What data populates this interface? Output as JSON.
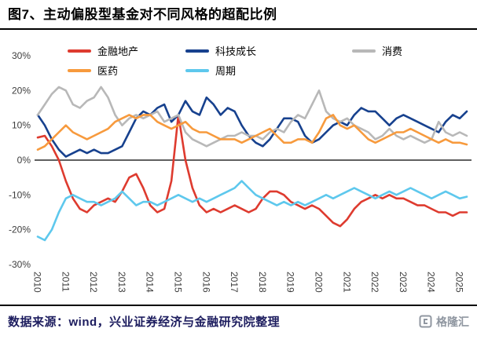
{
  "page": {
    "title": "图7、主动偏股型基金对不同风格的超配比例",
    "source_text": "数据来源：wind，兴业证券经济与金融研究院整理",
    "logo_text": "格隆汇"
  },
  "chart_data": {
    "type": "line",
    "title": "主动偏股型基金对不同风格的超配比例",
    "x_unit": "quarterly, 2010Q1 - 2025Q2",
    "x_tick_labels": [
      "2010",
      "2011",
      "2012",
      "2013",
      "2014",
      "2015",
      "2016",
      "2017",
      "2018",
      "2019",
      "2020",
      "2021",
      "2022",
      "2023",
      "2024",
      "2025"
    ],
    "points_per_year": 4,
    "ylim": [
      -30,
      30
    ],
    "y_ticks": [
      30,
      20,
      10,
      0,
      -10,
      -20,
      -30
    ],
    "y_tick_labels": [
      "30%",
      "20%",
      "10%",
      "0%",
      "-10%",
      "-20%",
      "-30%"
    ],
    "grid": false,
    "legend_position": "top",
    "axis_color": "#000000",
    "series": [
      {
        "name": "金融地产",
        "color": "#de3b2f",
        "values": [
          6.5,
          7,
          4,
          0,
          -6,
          -11,
          -14,
          -15,
          -13,
          -12,
          -11,
          -12,
          -9,
          -5,
          -4,
          -8,
          -13,
          -15,
          -14,
          -6,
          13,
          0,
          -8,
          -13,
          -15,
          -14,
          -15,
          -14,
          -13,
          -14,
          -15,
          -14,
          -11,
          -9,
          -9,
          -10,
          -12,
          -13,
          -14,
          -13,
          -14,
          -16,
          -18,
          -19,
          -17,
          -14,
          -12,
          -11,
          -10,
          -11,
          -10,
          -11,
          -11,
          -12,
          -13,
          -13,
          -14,
          -15,
          -15,
          -16,
          -15,
          -15
        ]
      },
      {
        "name": "科技成长",
        "color": "#17418e",
        "values": [
          13,
          10,
          6,
          3,
          1,
          2,
          3,
          2,
          3,
          2,
          2,
          3,
          4,
          8,
          12,
          14,
          13,
          15,
          16,
          11,
          13,
          17,
          14,
          13,
          18,
          16,
          13,
          15,
          14,
          10,
          7,
          5,
          4,
          6,
          9,
          12,
          12,
          11,
          7,
          5,
          6,
          8,
          10,
          11,
          10,
          13,
          15,
          14,
          14,
          12,
          10,
          12,
          13,
          12,
          11,
          10,
          9,
          8,
          11,
          13,
          12,
          14
        ]
      },
      {
        "name": "消费",
        "color": "#b8b8b8",
        "values": [
          13,
          16,
          19,
          21,
          20,
          16,
          15,
          17,
          18,
          21,
          18,
          13,
          10,
          12,
          13,
          12,
          13,
          14,
          11,
          12,
          13,
          8,
          6,
          5,
          4,
          5,
          6,
          7,
          7,
          8,
          7,
          7,
          6,
          8,
          9,
          8,
          11,
          13,
          12,
          16,
          20,
          14,
          12,
          11,
          12,
          10,
          9,
          8,
          6,
          7,
          9,
          7,
          6,
          7,
          6,
          5,
          6,
          11,
          8,
          7,
          8,
          7
        ]
      },
      {
        "name": "医药",
        "color": "#f79a3d",
        "values": [
          3,
          4,
          6,
          8,
          10,
          8,
          7,
          6,
          7,
          8,
          9,
          11,
          12,
          13,
          12,
          13,
          13,
          11,
          10,
          9,
          10,
          11,
          9,
          8,
          8,
          7,
          6,
          6,
          6,
          5,
          6,
          7,
          8,
          9,
          7,
          5,
          5,
          6,
          6,
          5,
          8,
          12,
          13,
          10,
          9,
          10,
          8,
          6,
          5,
          6,
          7,
          8,
          8,
          9,
          8,
          7,
          6,
          5,
          6,
          5,
          5,
          4.5
        ]
      },
      {
        "name": "周期",
        "color": "#5ec8ed",
        "values": [
          -22,
          -23,
          -20,
          -15,
          -11,
          -10,
          -11,
          -12,
          -12,
          -13,
          -12,
          -11,
          -9,
          -11,
          -13,
          -12,
          -12,
          -13,
          -12,
          -11,
          -10,
          -11,
          -12,
          -11,
          -12,
          -11,
          -10,
          -9,
          -8,
          -6,
          -8,
          -10,
          -11,
          -12,
          -13,
          -12,
          -13,
          -12,
          -13,
          -12,
          -11,
          -10,
          -11,
          -10,
          -9,
          -8,
          -9,
          -10,
          -11,
          -10,
          -9,
          -10,
          -9,
          -8,
          -9,
          -10,
          -11,
          -10,
          -9,
          -10,
          -11,
          -10.5
        ]
      }
    ]
  }
}
